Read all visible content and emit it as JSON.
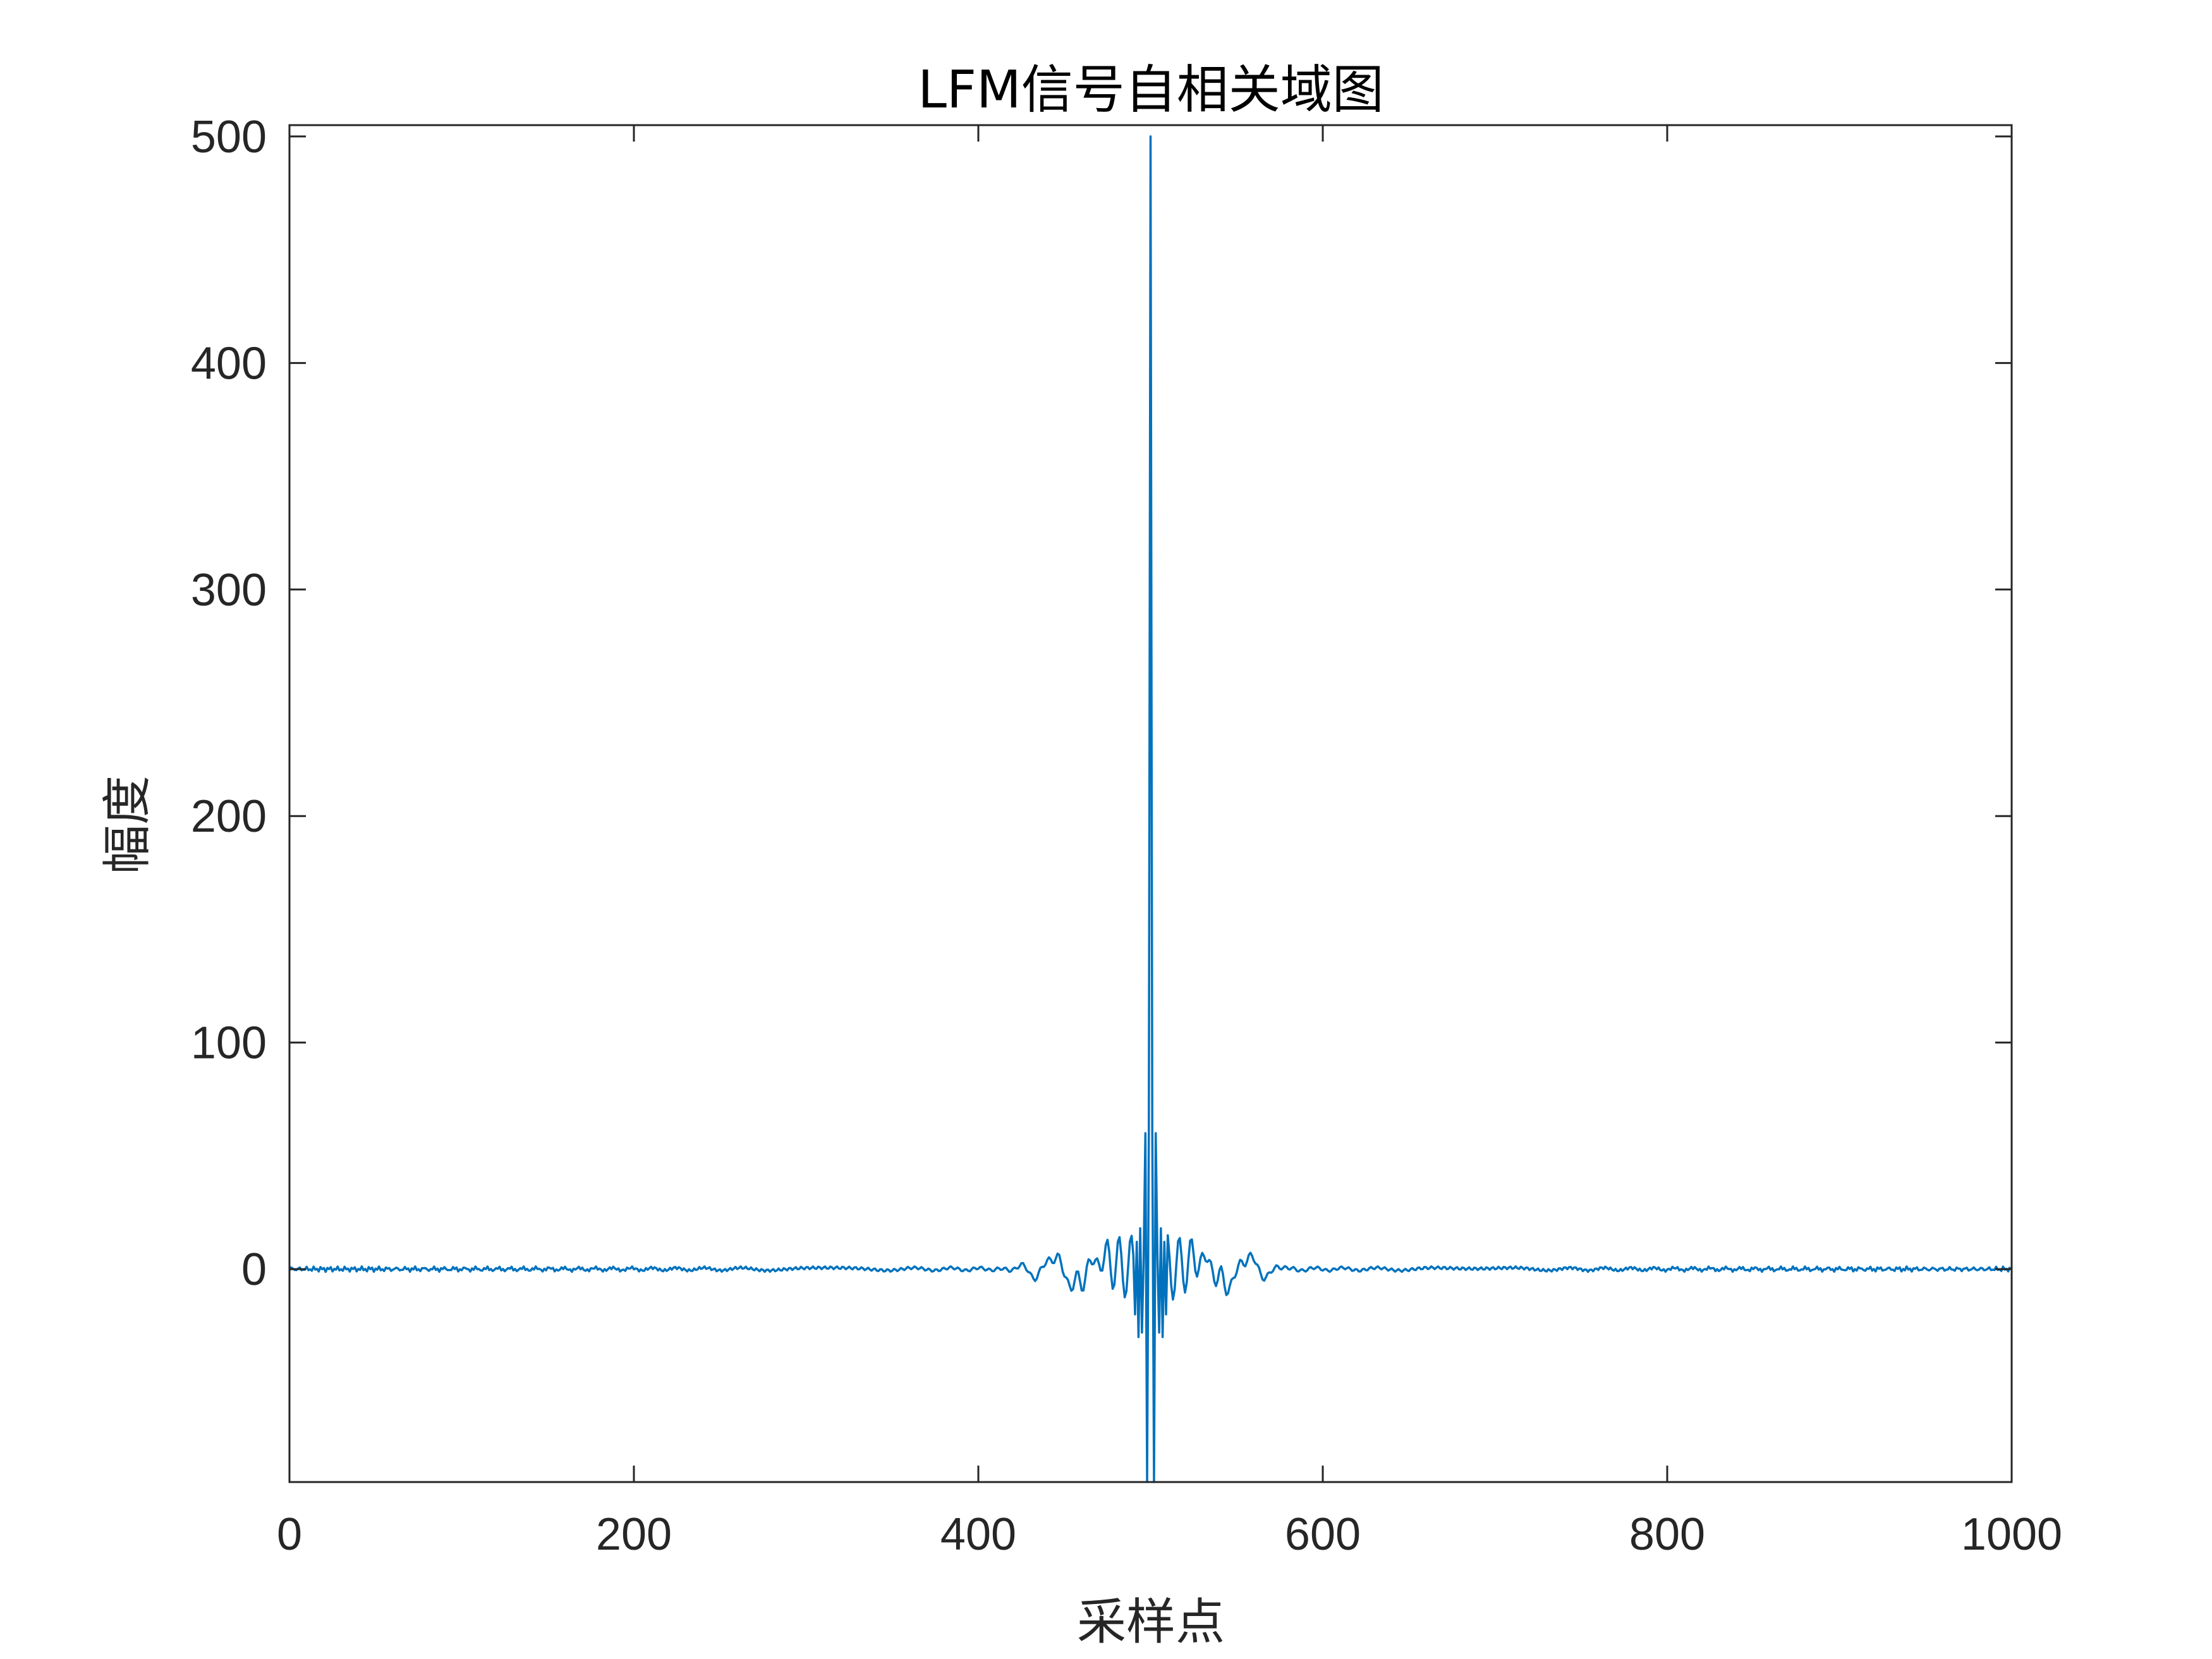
{
  "chart_data": {
    "type": "line",
    "title": "LFM信号自相关域图",
    "xlabel": "采样点",
    "ylabel": "幅度",
    "xlim": [
      0,
      1000
    ],
    "ylim": [
      -94,
      505
    ],
    "xticks": [
      0,
      200,
      400,
      600,
      800,
      1000
    ],
    "xtick_labels": [
      "0",
      "200",
      "400",
      "600",
      "800",
      "1000"
    ],
    "yticks": [
      0,
      100,
      200,
      300,
      400,
      500
    ],
    "ytick_labels": [
      "0",
      "100",
      "200",
      "300",
      "400",
      "500"
    ],
    "grid": false,
    "box": true,
    "line_color": "#0072BD",
    "series": [
      {
        "x_start": 0,
        "x_end": 999,
        "peak_x": 500,
        "peak_value": 500,
        "values_near_peak": [
          {
            "x": 491,
            "y": -20
          },
          {
            "x": 492,
            "y": 12
          },
          {
            "x": 493,
            "y": -30
          },
          {
            "x": 494,
            "y": 18
          },
          {
            "x": 495,
            "y": -28
          },
          {
            "x": 496,
            "y": 5
          },
          {
            "x": 497,
            "y": 60
          },
          {
            "x": 498,
            "y": -94
          },
          {
            "x": 499,
            "y": 62
          },
          {
            "x": 500,
            "y": 500
          },
          {
            "x": 501,
            "y": 62
          },
          {
            "x": 502,
            "y": -94
          },
          {
            "x": 503,
            "y": 60
          },
          {
            "x": 504,
            "y": 5
          },
          {
            "x": 505,
            "y": -28
          },
          {
            "x": 506,
            "y": 18
          },
          {
            "x": 507,
            "y": -30
          },
          {
            "x": 508,
            "y": 12
          },
          {
            "x": 509,
            "y": -20
          }
        ],
        "sidelobe_features": [
          {
            "x": 455,
            "y": 8
          },
          {
            "x": 545,
            "y": 8
          },
          {
            "x": 430,
            "y": 5
          },
          {
            "x": 570,
            "y": 5
          }
        ]
      }
    ]
  },
  "colors": {
    "axes": "#262626",
    "line": "#0072BD",
    "background": "#ffffff"
  }
}
